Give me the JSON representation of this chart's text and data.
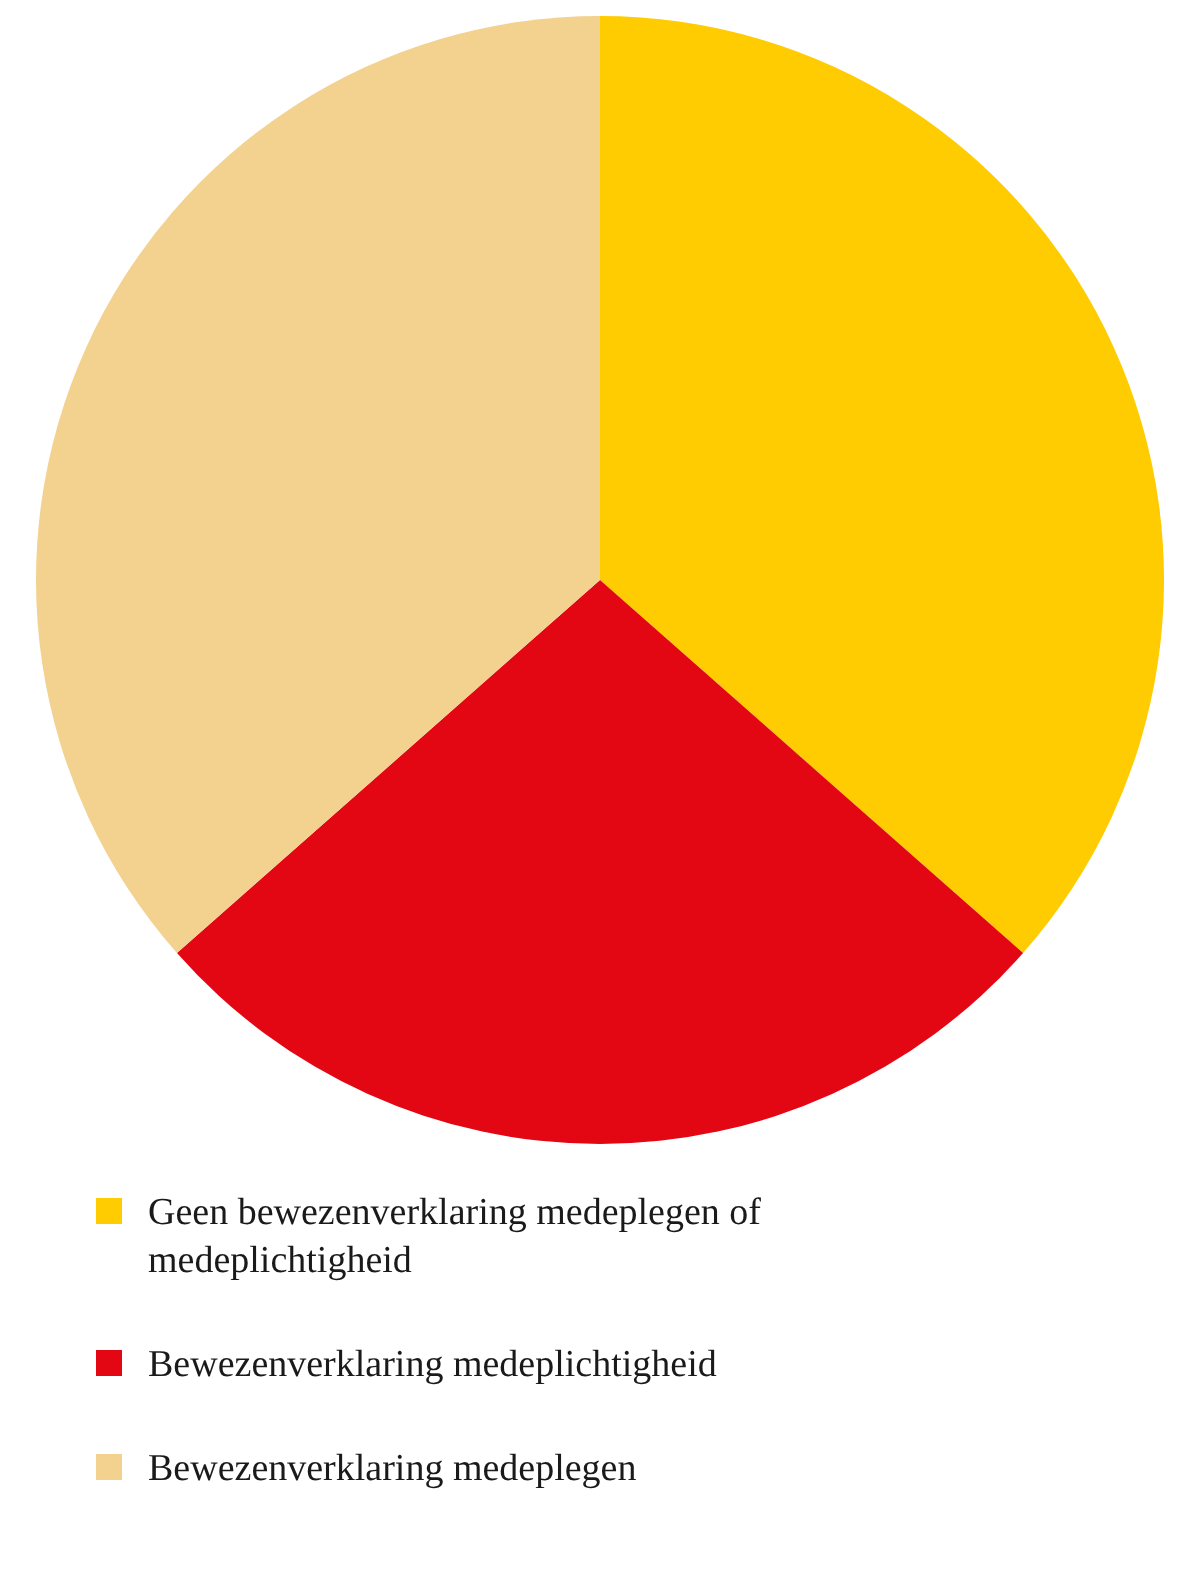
{
  "chart_data": {
    "type": "pie",
    "categories": [
      "Geen bewezenverklaring medeplegen of medeplichtigheid",
      "Bewezenverklaring medeplichtigheid",
      "Bewezenverklaring medeplegen"
    ],
    "values": [
      36.5,
      27,
      36.5
    ],
    "colors": [
      "#fecc00",
      "#e30613",
      "#f3d18f"
    ],
    "legend": "bottom"
  }
}
